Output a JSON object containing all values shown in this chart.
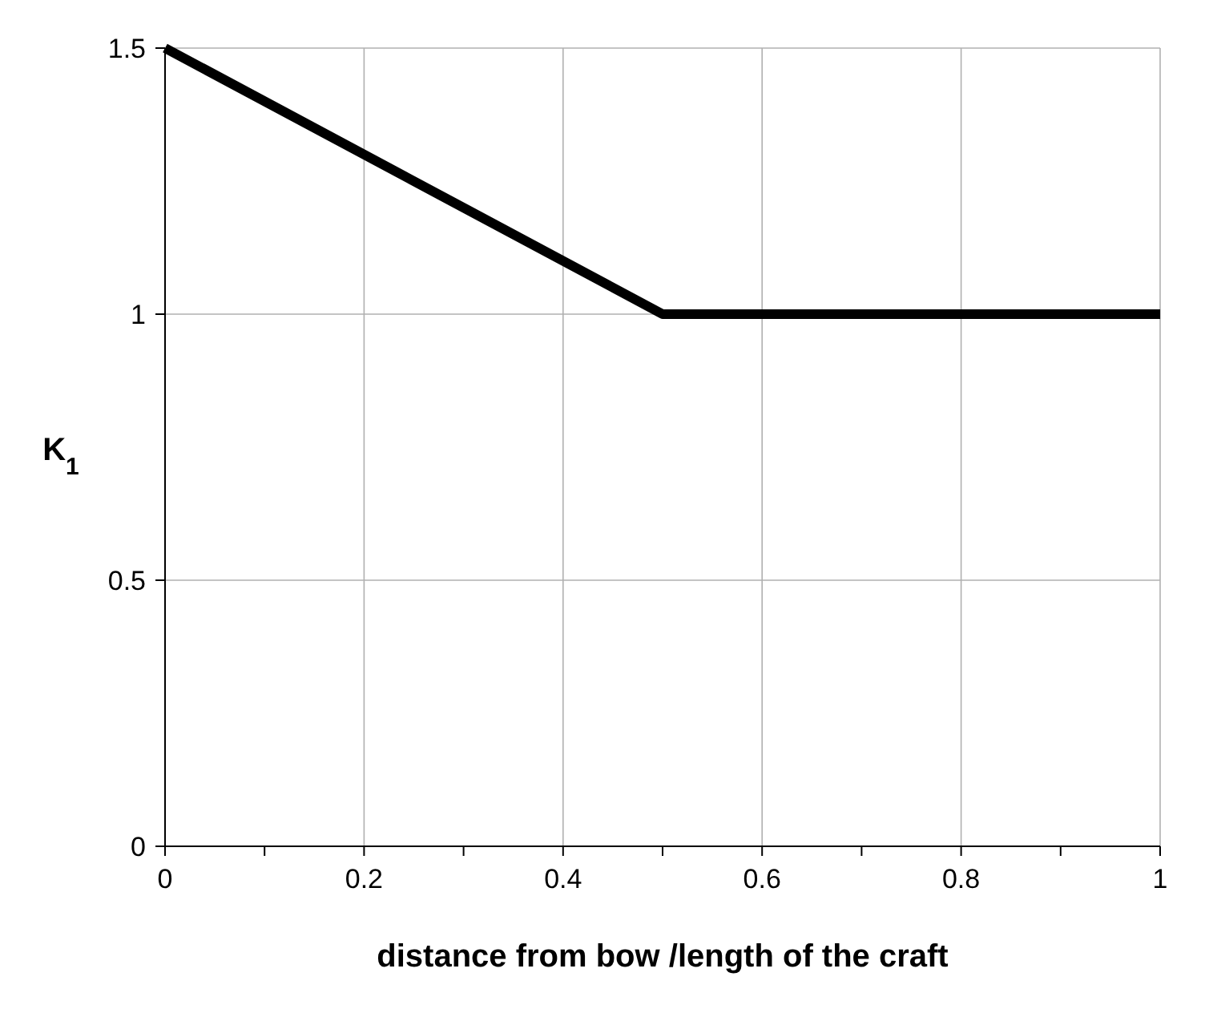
{
  "chart_data": {
    "type": "line",
    "xlabel": "distance from bow /length of the craft",
    "ylabel": "K$_{1}$",
    "x": [
      0,
      0.5,
      1
    ],
    "series": [
      {
        "color": "#000000",
        "values": [
          1.5,
          1,
          1
        ]
      }
    ],
    "xlim": [
      0,
      1
    ],
    "ylim": [
      0,
      1.5
    ],
    "xticks": [
      0,
      {
        "value": 0.1,
        "label": null
      },
      0.2,
      {
        "value": 0.3,
        "label": null
      },
      0.4,
      {
        "value": 0.5,
        "label": null
      },
      0.6,
      {
        "value": 0.7,
        "label": null
      },
      0.8,
      {
        "value": 0.9,
        "label": null
      },
      1
    ],
    "yticks": [
      0,
      0.5,
      1,
      1.5
    ],
    "grid": true,
    "marker": "none",
    "line_style": "solid"
  }
}
